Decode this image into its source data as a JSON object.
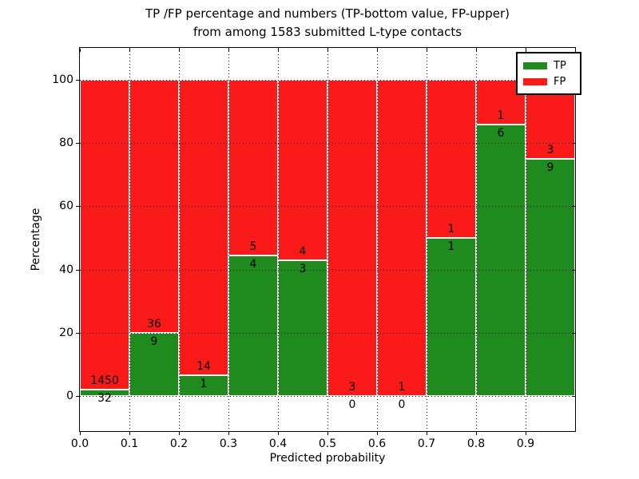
{
  "figure": {
    "title_line1": "TP /FP percentage and numbers (TP-bottom value, FP-upper)",
    "title_line2": "from among 1583 submitted L-type contacts",
    "background_color": "#ffffff",
    "total_contacts": "1583"
  },
  "axes": {
    "xlabel": "Predicted probability",
    "ylabel": "Percentage"
  },
  "legend": {
    "entries": [
      {
        "label": "TP",
        "color": "#1f8b1f"
      },
      {
        "label": "FP",
        "color": "#fb1a1a"
      }
    ]
  },
  "chart_data": {
    "type": "bar",
    "stacked": true,
    "normalized_to_percent": true,
    "title": "TP /FP percentage and numbers (TP-bottom value, FP-upper)\nfrom among 1583 submitted L-type contacts",
    "xlabel": "Predicted probability",
    "ylabel": "Percentage",
    "categories": [
      "0.0-0.1",
      "0.1-0.2",
      "0.2-0.3",
      "0.3-0.4",
      "0.4-0.5",
      "0.5-0.6",
      "0.6-0.7",
      "0.7-0.8",
      "0.8-0.9",
      "0.9-1.0"
    ],
    "series": [
      {
        "name": "TP",
        "color": "#1f8b1f",
        "values": [
          32,
          9,
          1,
          4,
          3,
          0,
          0,
          1,
          6,
          9
        ]
      },
      {
        "name": "FP",
        "color": "#fb1a1a",
        "values": [
          1450,
          36,
          14,
          5,
          4,
          3,
          1,
          1,
          1,
          3
        ]
      }
    ],
    "tp_percent_of_bin": [
      2.16,
      20.0,
      6.67,
      44.44,
      42.86,
      0.0,
      0.0,
      50.0,
      85.71,
      75.0
    ],
    "bar_label_convention": "FP count above boundary, TP count below boundary",
    "x_ticks": [
      "0.0",
      "0.1",
      "0.2",
      "0.3",
      "0.4",
      "0.5",
      "0.6",
      "0.7",
      "0.8",
      "0.9"
    ],
    "y_ticks": [
      0,
      20,
      40,
      60,
      80,
      100
    ],
    "xlim": [
      0,
      1
    ],
    "ylim": [
      -11,
      110
    ],
    "grid": "dotted",
    "legend_position": "upper right"
  }
}
